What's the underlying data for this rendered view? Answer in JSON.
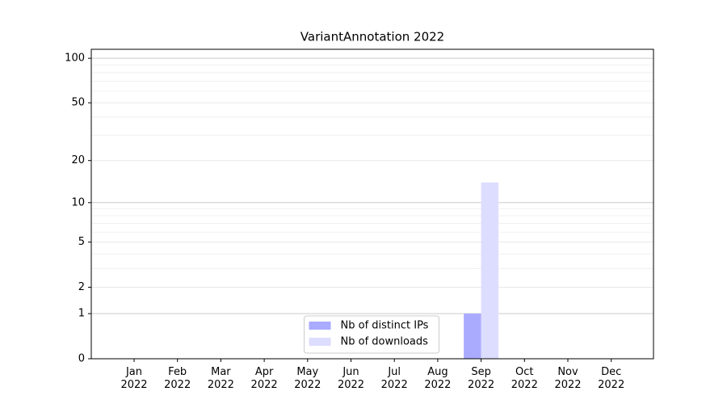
{
  "chart_data": {
    "type": "bar",
    "title": "VariantAnnotation 2022",
    "categories": [
      "Jan\n2022",
      "Feb\n2022",
      "Mar\n2022",
      "Apr\n2022",
      "May\n2022",
      "Jun\n2022",
      "Jul\n2022",
      "Aug\n2022",
      "Sep\n2022",
      "Oct\n2022",
      "Nov\n2022",
      "Dec\n2022"
    ],
    "series": [
      {
        "name": "Nb of distinct IPs",
        "color": "#aaaaff",
        "values": [
          0,
          0,
          0,
          0,
          0,
          0,
          0,
          0,
          1,
          0,
          0,
          0
        ]
      },
      {
        "name": "Nb of downloads",
        "color": "#ddddff",
        "values": [
          0,
          0,
          0,
          0,
          0,
          0,
          0,
          0,
          14,
          0,
          0,
          0
        ]
      }
    ],
    "yscale": "log1p",
    "ylim": [
      0,
      115
    ],
    "yticks": [
      0,
      1,
      2,
      5,
      10,
      20,
      50,
      100
    ],
    "minor_yticks": [
      3,
      4,
      6,
      7,
      8,
      9,
      30,
      40,
      60,
      70,
      80,
      90
    ],
    "grid": true,
    "legend": "lower center"
  }
}
